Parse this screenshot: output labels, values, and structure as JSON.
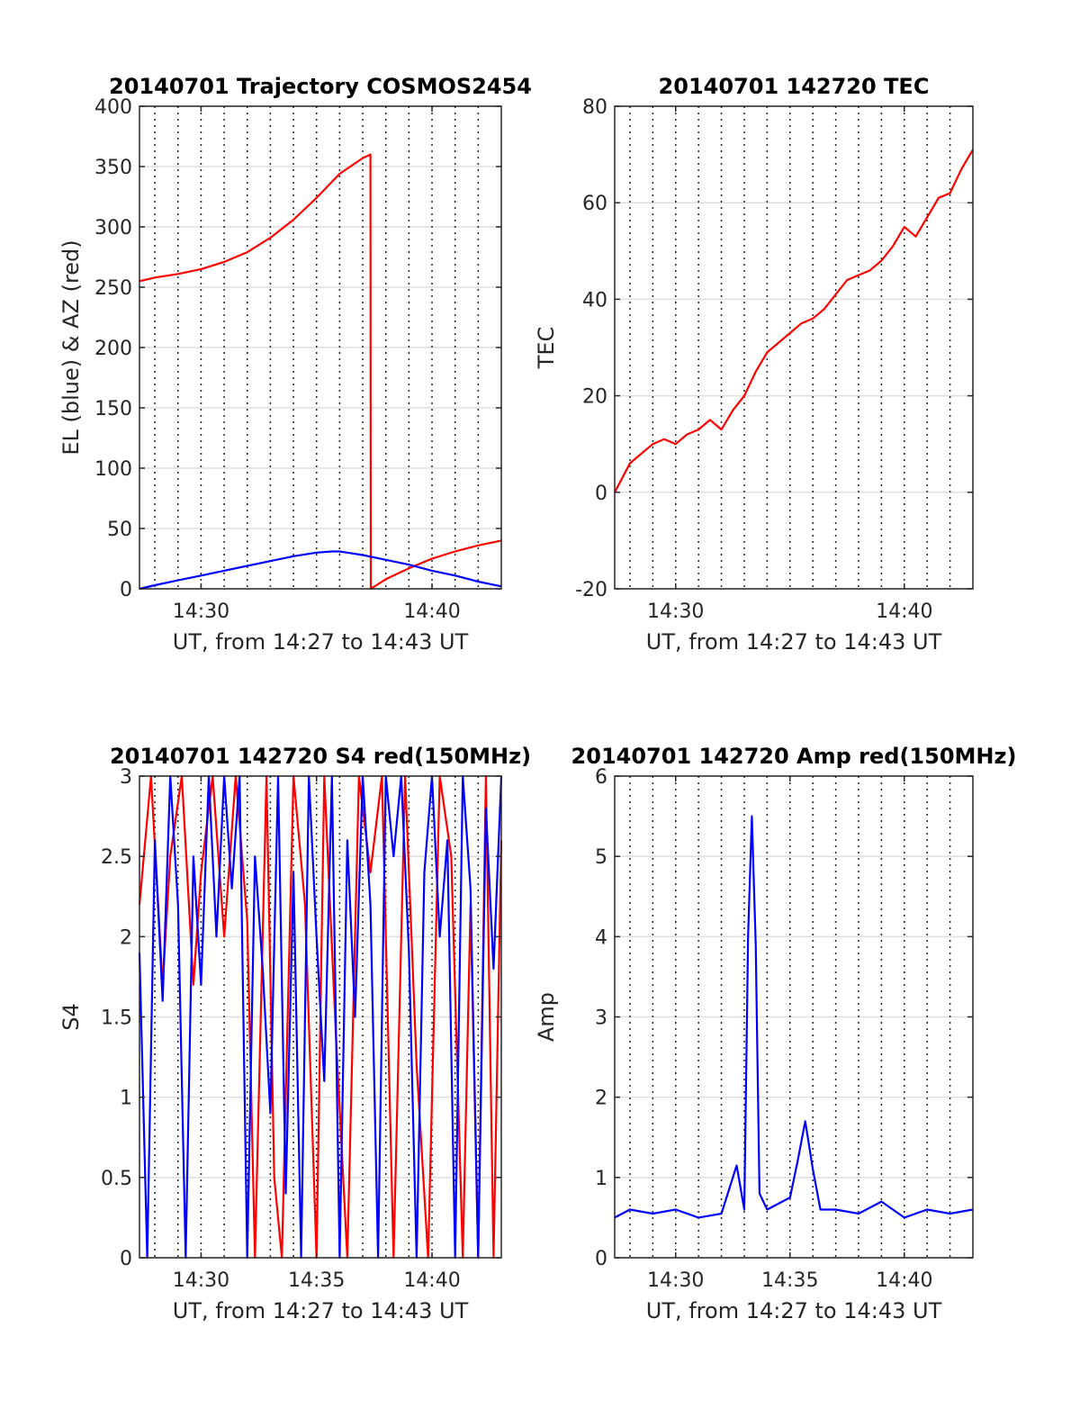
{
  "colors": {
    "red": "#ff0000",
    "blue": "#0000ff",
    "frame": "#262626",
    "grid": "#dedede"
  },
  "chart_data": [
    {
      "id": "trajectory",
      "type": "line",
      "title": "20140701 Trajectory COSMOS2454",
      "xlabel": "UT, from 14:27 to 14:43 UT",
      "ylabel": "EL (blue) & AZ (red)",
      "xlim": [
        "14:27:20",
        "14:43:00"
      ],
      "ylim": [
        0,
        400
      ],
      "yticks": [
        0,
        50,
        100,
        150,
        200,
        250,
        300,
        350,
        400
      ],
      "yticklabels": [
        "0",
        "50",
        "100",
        "150",
        "200",
        "250",
        "300",
        "350",
        "400"
      ],
      "xticks": [
        "14:30:00",
        "14:40:00"
      ],
      "xticklabels": [
        "14:30",
        "14:40"
      ],
      "grid": true,
      "series": [
        {
          "color": "#ff0000",
          "x": [
            "14:27:20",
            "14:28:00",
            "14:29:00",
            "14:30:00",
            "14:31:00",
            "14:32:00",
            "14:33:00",
            "14:34:00",
            "14:35:00",
            "14:36:00",
            "14:37:00",
            "14:37:20",
            "14:37:21",
            "14:38:00",
            "14:39:00",
            "14:40:00",
            "14:41:00",
            "14:42:00",
            "14:43:00"
          ],
          "y": [
            255,
            258,
            261,
            265,
            271,
            279,
            291,
            306,
            324,
            344,
            357,
            360,
            0,
            8,
            17,
            25,
            31,
            36,
            40
          ]
        },
        {
          "color": "#0000ff",
          "x": [
            "14:27:20",
            "14:28:00",
            "14:29:00",
            "14:30:00",
            "14:31:00",
            "14:32:00",
            "14:33:00",
            "14:34:00",
            "14:35:00",
            "14:35:40",
            "14:36:00",
            "14:37:00",
            "14:38:00",
            "14:39:00",
            "14:40:00",
            "14:41:00",
            "14:42:00",
            "14:43:00"
          ],
          "y": [
            0,
            3,
            7,
            11,
            15,
            19,
            23,
            27,
            30,
            31,
            31,
            28,
            24,
            20,
            15,
            11,
            6,
            2
          ]
        }
      ]
    },
    {
      "id": "tec",
      "type": "line",
      "title": "20140701 142720 TEC",
      "xlabel": "UT, from 14:27 to 14:43 UT",
      "ylabel": "TEC",
      "xlim": [
        "14:27:20",
        "14:43:00"
      ],
      "ylim": [
        -20,
        80
      ],
      "yticks": [
        -20,
        0,
        20,
        40,
        60,
        80
      ],
      "yticklabels": [
        "-20",
        "0",
        "20",
        "40",
        "60",
        "80"
      ],
      "xticks": [
        "14:30:00",
        "14:40:00"
      ],
      "xticklabels": [
        "14:30",
        "14:40"
      ],
      "grid": true,
      "series": [
        {
          "color": "#ff0000",
          "x": [
            "14:27:20",
            "14:27:40",
            "14:28:00",
            "14:28:30",
            "14:29:00",
            "14:29:30",
            "14:30:00",
            "14:30:30",
            "14:31:00",
            "14:31:30",
            "14:32:00",
            "14:32:30",
            "14:33:00",
            "14:33:30",
            "14:34:00",
            "14:34:30",
            "14:35:00",
            "14:35:30",
            "14:36:00",
            "14:36:30",
            "14:37:00",
            "14:37:30",
            "14:38:00",
            "14:38:30",
            "14:39:00",
            "14:39:30",
            "14:40:00",
            "14:40:30",
            "14:41:00",
            "14:41:30",
            "14:42:00",
            "14:42:30",
            "14:43:00"
          ],
          "y": [
            0,
            3,
            6,
            8,
            10,
            11,
            10,
            12,
            13,
            15,
            13,
            17,
            20,
            25,
            29,
            31,
            33,
            35,
            36,
            38,
            41,
            44,
            45,
            46,
            48,
            51,
            55,
            53,
            57,
            61,
            62,
            67,
            71
          ]
        }
      ]
    },
    {
      "id": "s4",
      "type": "line",
      "title": "20140701 142720 S4 red(150MHz)",
      "xlabel": "UT, from 14:27 to 14:43 UT",
      "ylabel": "S4",
      "xlim": [
        "14:27:20",
        "14:43:00"
      ],
      "ylim": [
        0,
        3
      ],
      "yticks": [
        0,
        0.5,
        1,
        1.5,
        2,
        2.5,
        3
      ],
      "yticklabels": [
        "0",
        "0.5",
        "1",
        "1.5",
        "2",
        "2.5",
        "3"
      ],
      "xticks": [
        "14:30:00",
        "14:35:00",
        "14:40:00"
      ],
      "xticklabels": [
        "14:30",
        "14:35",
        "14:40"
      ],
      "grid": true,
      "series": [
        {
          "color": "#ff0000",
          "x": [
            "14:27:20",
            "14:27:50",
            "14:28:20",
            "14:28:40",
            "14:29:10",
            "14:29:40",
            "14:30:00",
            "14:30:30",
            "14:31:00",
            "14:31:30",
            "14:32:00",
            "14:32:20",
            "14:32:50",
            "14:33:10",
            "14:33:30",
            "14:34:00",
            "14:34:30",
            "14:35:00",
            "14:35:20",
            "14:35:50",
            "14:36:20",
            "14:36:50",
            "14:37:20",
            "14:37:50",
            "14:38:20",
            "14:38:50",
            "14:39:20",
            "14:39:50",
            "14:40:20",
            "14:40:50",
            "14:41:20",
            "14:41:40",
            "14:42:00",
            "14:42:20",
            "14:42:40",
            "14:43:00"
          ],
          "y": [
            2.2,
            3.0,
            1.7,
            2.5,
            3.0,
            1.7,
            2.4,
            3.0,
            2.0,
            3.0,
            2.1,
            0.0,
            3.0,
            0.5,
            0.0,
            3.0,
            2.2,
            0.0,
            3.0,
            1.4,
            0.0,
            3.0,
            2.4,
            3.0,
            0.0,
            3.0,
            1.2,
            0.0,
            3.0,
            2.5,
            0.0,
            2.2,
            0.0,
            3.0,
            0.0,
            2.6
          ]
        },
        {
          "color": "#0000ff",
          "x": [
            "14:27:20",
            "14:27:40",
            "14:28:00",
            "14:28:20",
            "14:28:40",
            "14:29:00",
            "14:29:20",
            "14:29:40",
            "14:30:00",
            "14:30:20",
            "14:30:40",
            "14:31:00",
            "14:31:20",
            "14:31:40",
            "14:32:00",
            "14:32:20",
            "14:32:40",
            "14:33:00",
            "14:33:20",
            "14:33:40",
            "14:34:00",
            "14:34:20",
            "14:34:40",
            "14:35:00",
            "14:35:20",
            "14:35:40",
            "14:36:00",
            "14:36:20",
            "14:36:40",
            "14:37:00",
            "14:37:20",
            "14:37:40",
            "14:38:00",
            "14:38:20",
            "14:38:40",
            "14:39:00",
            "14:39:20",
            "14:39:40",
            "14:40:00",
            "14:40:20",
            "14:40:40",
            "14:41:00",
            "14:41:20",
            "14:41:40",
            "14:42:00",
            "14:42:20",
            "14:42:40",
            "14:43:00"
          ],
          "y": [
            1.9,
            0.0,
            2.6,
            1.6,
            3.0,
            2.2,
            0.0,
            2.5,
            1.7,
            3.0,
            2.0,
            3.0,
            2.3,
            3.0,
            0.0,
            2.5,
            1.8,
            0.9,
            3.0,
            0.4,
            2.4,
            0.0,
            3.0,
            2.0,
            1.1,
            3.0,
            0.0,
            2.6,
            1.5,
            3.0,
            2.2,
            0.0,
            3.0,
            2.5,
            3.0,
            1.9,
            0.0,
            2.4,
            3.0,
            2.0,
            2.6,
            0.0,
            3.0,
            2.3,
            0.0,
            2.8,
            1.8,
            3.0
          ]
        }
      ]
    },
    {
      "id": "amp",
      "type": "line",
      "title": "20140701 142720 Amp red(150MHz)",
      "xlabel": "UT, from 14:27 to 14:43 UT",
      "ylabel": "Amp",
      "xlim": [
        "14:27:20",
        "14:43:00"
      ],
      "ylim": [
        0,
        6
      ],
      "yticks": [
        0,
        1,
        2,
        3,
        4,
        5,
        6
      ],
      "yticklabels": [
        "0",
        "1",
        "2",
        "3",
        "4",
        "5",
        "6"
      ],
      "xticks": [
        "14:30:00",
        "14:35:00",
        "14:40:00"
      ],
      "xticklabels": [
        "14:30",
        "14:35",
        "14:40"
      ],
      "grid": true,
      "series": [
        {
          "color": "#0000ff",
          "x": [
            "14:27:20",
            "14:28:00",
            "14:29:00",
            "14:30:00",
            "14:31:00",
            "14:32:00",
            "14:32:40",
            "14:33:00",
            "14:33:10",
            "14:33:20",
            "14:33:30",
            "14:33:40",
            "14:34:00",
            "14:35:00",
            "14:35:20",
            "14:35:40",
            "14:36:00",
            "14:36:20",
            "14:37:00",
            "14:38:00",
            "14:39:00",
            "14:40:00",
            "14:41:00",
            "14:42:00",
            "14:43:00"
          ],
          "y": [
            0.5,
            0.6,
            0.55,
            0.6,
            0.5,
            0.55,
            1.15,
            0.6,
            4.0,
            5.5,
            3.9,
            0.8,
            0.6,
            0.75,
            1.2,
            1.7,
            1.1,
            0.6,
            0.6,
            0.55,
            0.7,
            0.5,
            0.6,
            0.55,
            0.6
          ]
        }
      ]
    }
  ]
}
